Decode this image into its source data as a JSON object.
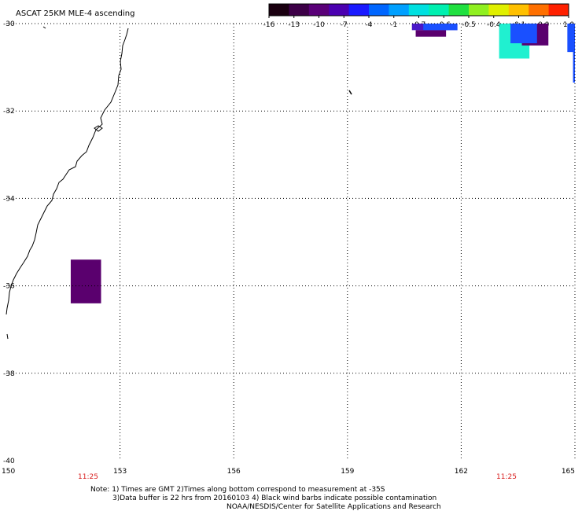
{
  "title": "ASCAT 25KM MLE-4 ascending",
  "colorbar": {
    "colors": [
      "#1a0010",
      "#3d0047",
      "#5a0078",
      "#4b00b0",
      "#1a1aff",
      "#0066ff",
      "#00a0ff",
      "#00e0e0",
      "#00f0b0",
      "#20e040",
      "#90f020",
      "#e0f000",
      "#ffc000",
      "#ff7000",
      "#ff2000"
    ],
    "tick_labels": [
      "-16",
      "-13",
      "-10",
      "-7",
      "-4",
      "-1",
      "-0.7",
      "-0.6",
      "-0.5",
      "-0.4",
      "-0.1",
      "0.0",
      "1.0"
    ]
  },
  "map": {
    "lon_range": [
      150,
      165
    ],
    "lat_range": [
      -40,
      -30
    ],
    "lat_labels": [
      "-30",
      "-32",
      "-34",
      "-36",
      "-38",
      "-40"
    ],
    "lon_labels": [
      "150",
      "153",
      "156",
      "159",
      "162",
      "165"
    ],
    "time_marks": [
      "11:25",
      "11:25"
    ],
    "time_color": "#d81c1c"
  },
  "swaths": [
    {
      "lon": [
        151.7,
        152.5
      ],
      "lat": [
        -36.4,
        -35.4
      ],
      "color": "#5a006e"
    },
    {
      "lon": [
        160.7,
        161.9
      ],
      "lat": [
        -30.15,
        -30.0
      ],
      "color": "#4a18c8"
    },
    {
      "lon": [
        160.8,
        161.6
      ],
      "lat": [
        -30.3,
        -30.15
      ],
      "color": "#5a006e"
    },
    {
      "lon": [
        161.0,
        161.9
      ],
      "lat": [
        -30.15,
        -30.0
      ],
      "color": "#1a50ff"
    },
    {
      "lon": [
        163.0,
        163.8
      ],
      "lat": [
        -30.8,
        -30.0
      ],
      "color": "#20f0d0"
    },
    {
      "lon": [
        163.6,
        164.3
      ],
      "lat": [
        -30.5,
        -30.0
      ],
      "color": "#5a006e"
    },
    {
      "lon": [
        163.3,
        164.0
      ],
      "lat": [
        -30.45,
        -30.0
      ],
      "color": "#1a50ff"
    },
    {
      "lon": [
        164.8,
        165.0
      ],
      "lat": [
        -30.65,
        -30.0
      ],
      "color": "#1a50ff"
    },
    {
      "lon": [
        164.95,
        165.0
      ],
      "lat": [
        -31.35,
        -30.6
      ],
      "color": "#1a50ff"
    }
  ],
  "footer": {
    "line1": "Note: 1) Times are GMT 2)Times along bottom correspond to measurement at -35S",
    "line2": "3)Data buffer is 22 hrs from 20160103 4) Black wind barbs indicate possible contamination",
    "line3": "NOAA/NESDIS/Center for Satellite Applications and Research"
  }
}
